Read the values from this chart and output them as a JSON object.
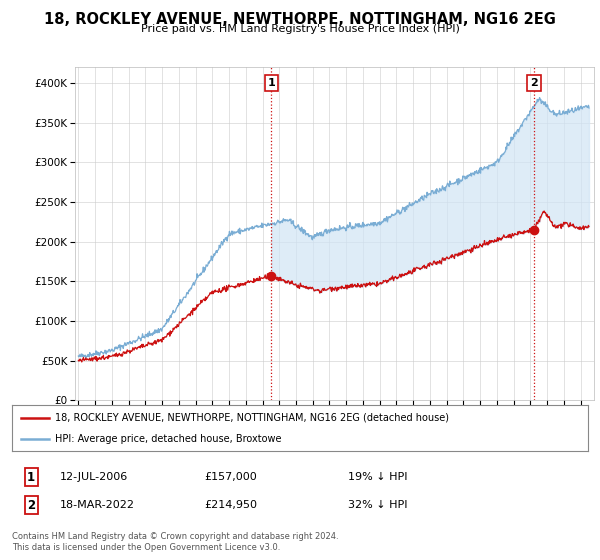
{
  "title": "18, ROCKLEY AVENUE, NEWTHORPE, NOTTINGHAM, NG16 2EG",
  "subtitle": "Price paid vs. HM Land Registry's House Price Index (HPI)",
  "ylabel_ticks": [
    "£0",
    "£50K",
    "£100K",
    "£150K",
    "£200K",
    "£250K",
    "£300K",
    "£350K",
    "£400K"
  ],
  "ytick_values": [
    0,
    50000,
    100000,
    150000,
    200000,
    250000,
    300000,
    350000,
    400000
  ],
  "ylim": [
    0,
    420000
  ],
  "xlim_start": 1994.8,
  "xlim_end": 2025.8,
  "hpi_color": "#7aadd4",
  "hpi_fill_color": "#d0e4f5",
  "price_color": "#cc1111",
  "marker1_date": 2006.53,
  "marker1_price": 157000,
  "marker1_label": "1",
  "marker2_date": 2022.21,
  "marker2_price": 214950,
  "marker2_label": "2",
  "legend_line1": "18, ROCKLEY AVENUE, NEWTHORPE, NOTTINGHAM, NG16 2EG (detached house)",
  "legend_line2": "HPI: Average price, detached house, Broxtowe",
  "annotation1_date": "12-JUL-2006",
  "annotation1_price": "£157,000",
  "annotation1_pct": "19% ↓ HPI",
  "annotation2_date": "18-MAR-2022",
  "annotation2_price": "£214,950",
  "annotation2_pct": "32% ↓ HPI",
  "footer1": "Contains HM Land Registry data © Crown copyright and database right 2024.",
  "footer2": "This data is licensed under the Open Government Licence v3.0.",
  "background_color": "#ffffff",
  "grid_color": "#cccccc"
}
